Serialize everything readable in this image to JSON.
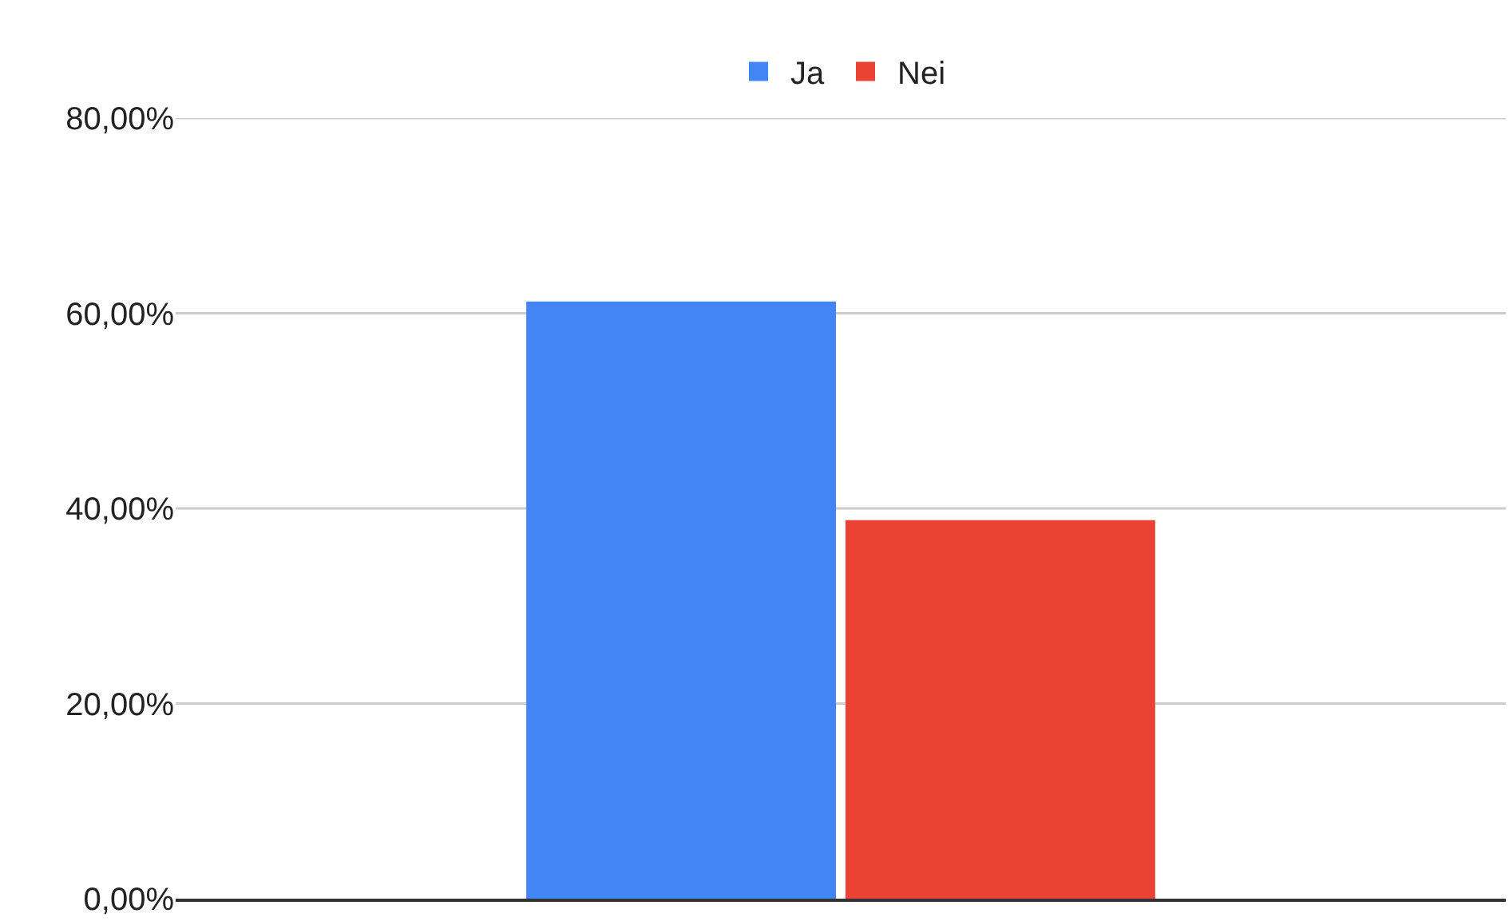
{
  "chart_data": {
    "type": "bar",
    "categories": [
      null
    ],
    "series": [
      {
        "name": "Ja",
        "color": "#4285f4",
        "values": [
          61.2
        ]
      },
      {
        "name": "Nei",
        "color": "#ea4335",
        "values": [
          38.8
        ]
      }
    ],
    "ylim": [
      0,
      80
    ],
    "yticks": [
      {
        "value": 0,
        "label": "0,00%"
      },
      {
        "value": 20,
        "label": "20,00%"
      },
      {
        "value": 40,
        "label": "40,00%"
      },
      {
        "value": 60,
        "label": "60,00%"
      },
      {
        "value": 80,
        "label": "80,00%"
      }
    ],
    "grid": "y",
    "legend": "top"
  }
}
